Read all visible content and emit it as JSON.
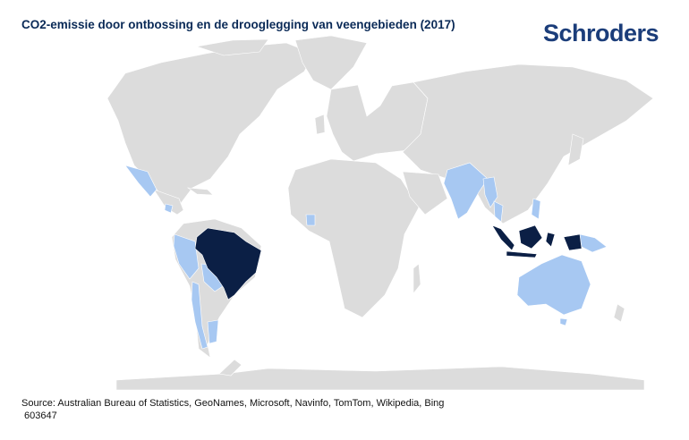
{
  "title": "CO2-emissie door ontbossing en de drooglegging van veengebieden (2017)",
  "brand": "Schroders",
  "source_line1": "Source: Australian Bureau of Statistics, GeoNames, Microsoft, Navinfo, TomTom, Wikipedia, Bing",
  "source_line2": " 603647",
  "colors": {
    "land": "#dcdcdc",
    "highlight_high": "#0b1f45",
    "highlight_medium": "#a7c8f2",
    "title": "#0a2a57",
    "logo": "#1b3d7a"
  },
  "chart_data": {
    "type": "map",
    "highlighted_regions": [
      {
        "region": "Brazil",
        "level": "high"
      },
      {
        "region": "Indonesia",
        "level": "high"
      },
      {
        "region": "India",
        "level": "medium"
      },
      {
        "region": "Australia",
        "level": "medium"
      },
      {
        "region": "Peru",
        "level": "medium"
      },
      {
        "region": "Ecuador",
        "level": "medium"
      },
      {
        "region": "Bolivia",
        "level": "medium"
      },
      {
        "region": "Paraguay",
        "level": "medium"
      },
      {
        "region": "Argentina",
        "level": "medium"
      },
      {
        "region": "Chile",
        "level": "medium"
      },
      {
        "region": "Mexico",
        "level": "medium"
      },
      {
        "region": "Nicaragua",
        "level": "medium"
      },
      {
        "region": "Ghana",
        "level": "medium"
      },
      {
        "region": "Myanmar",
        "level": "medium"
      },
      {
        "region": "Thailand",
        "level": "medium"
      },
      {
        "region": "Philippines",
        "level": "medium"
      },
      {
        "region": "Papua New Guinea",
        "level": "medium"
      }
    ]
  }
}
